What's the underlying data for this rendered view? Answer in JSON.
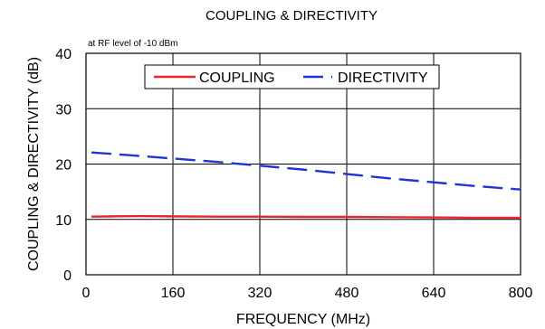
{
  "chart_data": {
    "type": "line",
    "title": "COUPLING & DIRECTIVITY",
    "annotation": "at RF level of -10 dBm",
    "xlabel": "FREQUENCY (MHz)",
    "ylabel": "COUPLING & DIRECTIVITY (dB)",
    "xlim": [
      0,
      800
    ],
    "ylim": [
      0,
      40
    ],
    "xticks": [
      0,
      160,
      320,
      480,
      640,
      800
    ],
    "yticks": [
      0,
      10,
      20,
      30,
      40
    ],
    "grid": true,
    "legend_position": "top-center",
    "series": [
      {
        "name": "COUPLING",
        "color": "#e8262b",
        "style": "solid",
        "x": [
          10,
          50,
          100,
          160,
          240,
          320,
          400,
          480,
          560,
          640,
          720,
          800
        ],
        "y": [
          10.5,
          10.55,
          10.6,
          10.55,
          10.5,
          10.5,
          10.45,
          10.45,
          10.4,
          10.35,
          10.3,
          10.3
        ]
      },
      {
        "name": "DIRECTIVITY",
        "color": "#1f33d6",
        "style": "dashed",
        "x": [
          10,
          80,
          160,
          240,
          320,
          400,
          480,
          560,
          640,
          720,
          800
        ],
        "y": [
          22.1,
          21.6,
          21.0,
          20.4,
          19.7,
          19.0,
          18.2,
          17.4,
          16.7,
          16.0,
          15.4
        ]
      }
    ]
  }
}
